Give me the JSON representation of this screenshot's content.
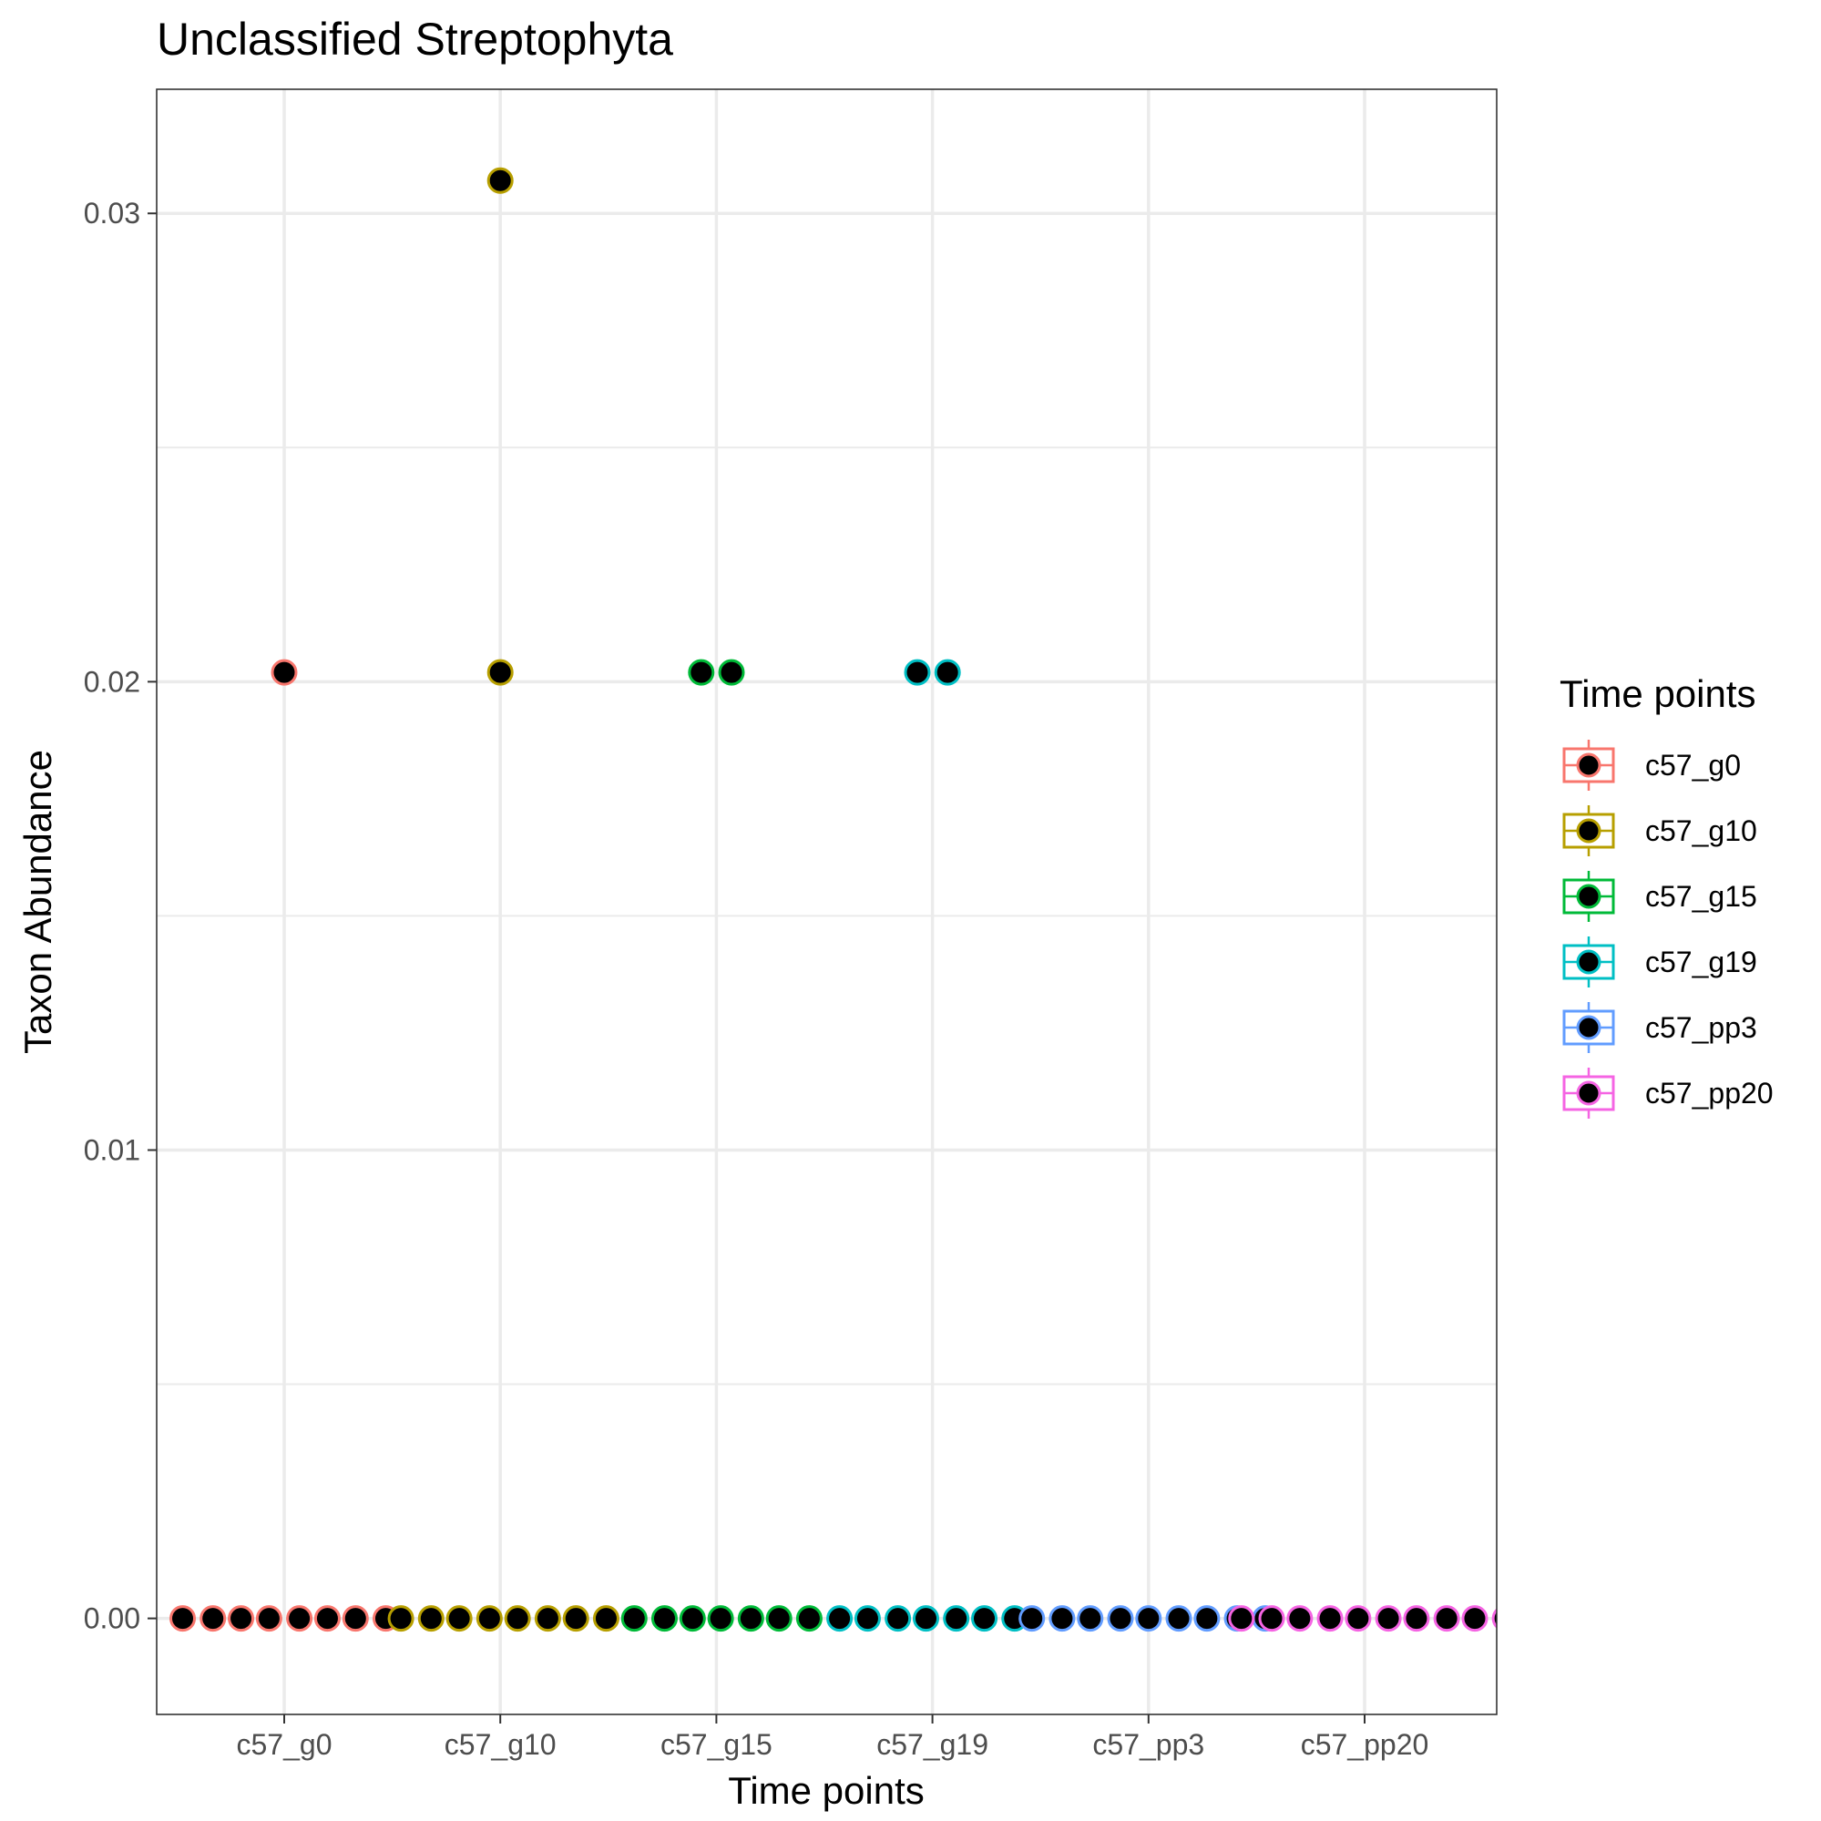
{
  "chart_data": {
    "type": "scatter",
    "title": "Unclassified Streptophyta",
    "xlabel": "Time points",
    "ylabel": "Taxon Abundance",
    "categories": [
      "c57_g0",
      "c57_g10",
      "c57_g15",
      "c57_g19",
      "c57_pp3",
      "c57_pp20"
    ],
    "y_ticks": [
      "0.00",
      "0.01",
      "0.02",
      "0.03"
    ],
    "ylim": [
      -0.00205,
      0.03265
    ],
    "grid": true,
    "legend": {
      "title": "Time points",
      "placement": "right",
      "entries": [
        "c57_g0",
        "c57_g10",
        "c57_g15",
        "c57_g19",
        "c57_pp3",
        "c57_pp20"
      ]
    },
    "colors": {
      "c57_g0": "#F8766D",
      "c57_g10": "#B79F00",
      "c57_g15": "#00BA38",
      "c57_g19": "#00BFC4",
      "c57_pp3": "#619CFF",
      "c57_pp20": "#F564E3",
      "point_fill": "#000000"
    },
    "series": [
      {
        "name": "c57_g0",
        "x": [
          -0.47,
          -0.33,
          -0.2,
          -0.07,
          0.07,
          0.2,
          0.33,
          0.47,
          0.0
        ],
        "y": [
          0,
          0,
          0,
          0,
          0,
          0,
          0,
          0,
          0.0202
        ]
      },
      {
        "name": "c57_g10",
        "x": [
          0.54,
          0.68,
          0.81,
          0.95,
          1.08,
          1.22,
          1.35,
          1.49,
          1.0,
          1.0
        ],
        "y": [
          0,
          0,
          0,
          0,
          0,
          0,
          0,
          0,
          0.0202,
          0.0307
        ]
      },
      {
        "name": "c57_g15",
        "x": [
          1.62,
          1.76,
          1.89,
          2.02,
          2.16,
          2.29,
          2.43,
          1.93,
          2.07
        ],
        "y": [
          0,
          0,
          0,
          0,
          0,
          0,
          0,
          0.0202,
          0.0202
        ]
      },
      {
        "name": "c57_g19",
        "x": [
          2.57,
          2.7,
          2.84,
          2.97,
          3.11,
          3.24,
          3.38,
          2.93,
          3.07
        ],
        "y": [
          0,
          0,
          0,
          0,
          0,
          0,
          0,
          0.0202,
          0.0202
        ]
      },
      {
        "name": "c57_pp3",
        "x": [
          3.46,
          3.6,
          3.73,
          3.87,
          4.0,
          4.14,
          4.27,
          4.41,
          4.54
        ],
        "y": [
          0,
          0,
          0,
          0,
          0,
          0,
          0,
          0,
          0
        ]
      },
      {
        "name": "c57_pp20",
        "x": [
          4.43,
          4.57,
          4.7,
          4.84,
          4.97,
          5.11,
          5.24,
          5.38,
          5.51,
          5.65
        ],
        "y": [
          0,
          0,
          0,
          0,
          0,
          0,
          0,
          0,
          0,
          0
        ]
      }
    ]
  }
}
